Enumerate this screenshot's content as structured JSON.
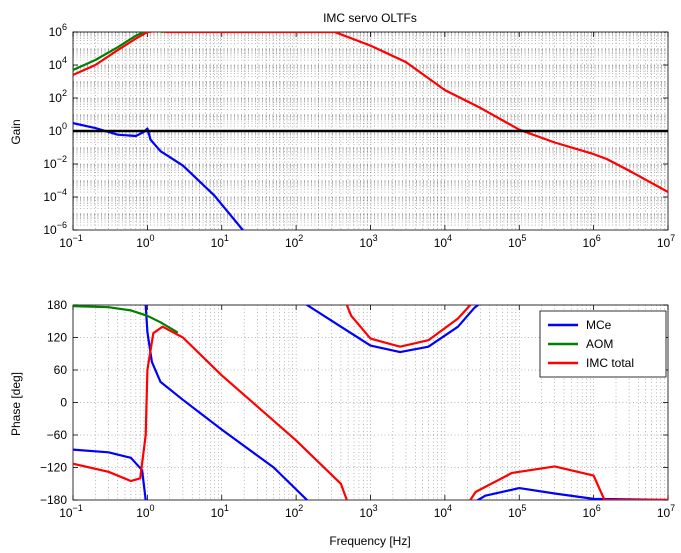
{
  "chart_data": [
    {
      "type": "line",
      "title": "IMC servo OLTFs",
      "xlabel": "",
      "ylabel": "Gain",
      "xscale": "log",
      "yscale": "log",
      "xlim": [
        0.1,
        10000000
      ],
      "ylim": [
        1e-06,
        1000000
      ],
      "grid": true,
      "x_tick_labels": [
        {
          "base": "10",
          "exp": "−1"
        },
        {
          "base": "10",
          "exp": "0"
        },
        {
          "base": "10",
          "exp": "1"
        },
        {
          "base": "10",
          "exp": "2"
        },
        {
          "base": "10",
          "exp": "3"
        },
        {
          "base": "10",
          "exp": "4"
        },
        {
          "base": "10",
          "exp": "5"
        },
        {
          "base": "10",
          "exp": "6"
        },
        {
          "base": "10",
          "exp": "7"
        }
      ],
      "y_tick_labels": [
        {
          "base": "10",
          "exp": "−6"
        },
        {
          "base": "10",
          "exp": "−4"
        },
        {
          "base": "10",
          "exp": "−2"
        },
        {
          "base": "10",
          "exp": "0"
        },
        {
          "base": "10",
          "exp": "2"
        },
        {
          "base": "10",
          "exp": "4"
        },
        {
          "base": "10",
          "exp": "6"
        }
      ],
      "reference_line": {
        "y": 1,
        "color": "#000000"
      },
      "series": [
        {
          "color": "#0000ff",
          "x": [
            0.1,
            0.2,
            0.4,
            0.7,
            0.9,
            1.0,
            1.1,
            1.5,
            3,
            8,
            20
          ],
          "y": [
            3,
            1.5,
            0.6,
            0.5,
            0.9,
            1.4,
            0.3,
            0.06,
            0.008,
            0.00012,
            8e-07
          ]
        },
        {
          "color": "#008000",
          "x": [
            0.1,
            0.2,
            0.4,
            0.7,
            1.0,
            1.2,
            1.5,
            1.6
          ],
          "y": [
            5000,
            20000,
            120000,
            600000,
            1300000,
            1200000,
            1100000,
            1000000
          ]
        },
        {
          "color": "#ff0000",
          "x": [
            0.1,
            0.2,
            0.4,
            0.7,
            1.0,
            1.5,
            1.8,
            330,
            1000,
            3000,
            10000,
            30000,
            100000,
            300000,
            1000000,
            1500000,
            3000000,
            10000000
          ],
          "y": [
            2500,
            10000,
            80000,
            400000,
            1000000,
            1200000,
            1000000,
            1000000,
            150000,
            15000,
            300,
            25,
            1.2,
            0.2,
            0.04,
            0.02,
            0.004,
            0.0002
          ]
        }
      ]
    },
    {
      "type": "line",
      "title": "",
      "xlabel": "Frequency [Hz]",
      "ylabel": "Phase [deg]",
      "xscale": "log",
      "xlim": [
        0.1,
        10000000
      ],
      "ylim": [
        -180,
        180
      ],
      "yticks": [
        -180,
        -120,
        -60,
        0,
        60,
        120,
        180
      ],
      "grid": true,
      "x_tick_labels": [
        {
          "base": "10",
          "exp": "−1"
        },
        {
          "base": "10",
          "exp": "0"
        },
        {
          "base": "10",
          "exp": "1"
        },
        {
          "base": "10",
          "exp": "2"
        },
        {
          "base": "10",
          "exp": "3"
        },
        {
          "base": "10",
          "exp": "4"
        },
        {
          "base": "10",
          "exp": "5"
        },
        {
          "base": "10",
          "exp": "6"
        },
        {
          "base": "10",
          "exp": "7"
        }
      ],
      "y_tick_labels": [
        "−180",
        "−120",
        "−60",
        "0",
        "60",
        "120",
        "180"
      ],
      "legend_position": "top-right",
      "series": [
        {
          "name": "MCe",
          "color": "#0000ff",
          "segments": [
            {
              "x": [
                0.1,
                0.3,
                0.6,
                0.85,
                0.95
              ],
              "y": [
                -87,
                -92,
                -102,
                -125,
                -180
              ]
            },
            {
              "x": [
                0.95,
                1.0,
                1.15,
                1.5,
                3,
                10,
                50,
                140
              ],
              "y": [
                180,
                130,
                75,
                38,
                5,
                -50,
                -120,
                -180
              ]
            },
            {
              "x": [
                140,
                400,
                1000,
                2500,
                6000,
                15000,
                25000,
                28000
              ],
              "y": [
                180,
                140,
                105,
                93,
                103,
                140,
                175,
                180
              ]
            },
            {
              "x": [
                28000,
                35000,
                100000,
                300000,
                1000000,
                10000000
              ],
              "y": [
                -180,
                -172,
                -158,
                -168,
                -178,
                -180
              ]
            }
          ]
        },
        {
          "name": "AOM",
          "color": "#008000",
          "segments": [
            {
              "x": [
                0.1,
                0.3,
                0.6,
                1.0,
                1.5,
                2.0,
                2.5
              ],
              "y": [
                178,
                176,
                170,
                160,
                148,
                138,
                130
              ]
            }
          ]
        },
        {
          "name": "IMC total",
          "color": "#ff0000",
          "segments": [
            {
              "x": [
                0.1,
                0.3,
                0.6,
                0.8,
                0.95,
                1.0
              ],
              "y": [
                -113,
                -128,
                -145,
                -140,
                -60,
                60
              ]
            },
            {
              "x": [
                1.0,
                1.2,
                1.6,
                3,
                10,
                100,
                400,
                480
              ],
              "y": [
                60,
                128,
                140,
                120,
                50,
                -70,
                -150,
                -180
              ]
            },
            {
              "x": [
                480,
                550,
                1000,
                2500,
                6000,
                15000,
                22000
              ],
              "y": [
                180,
                160,
                118,
                103,
                115,
                155,
                180
              ]
            },
            {
              "x": [
                22000,
                26000,
                80000,
                300000,
                1000000,
                1400000
              ],
              "y": [
                -180,
                -165,
                -130,
                -118,
                -135,
                -180
              ]
            },
            {
              "x": [
                1400000,
                3000000,
                10000000
              ],
              "y": [
                -180,
                -180,
                -180
              ]
            }
          ]
        }
      ]
    }
  ]
}
